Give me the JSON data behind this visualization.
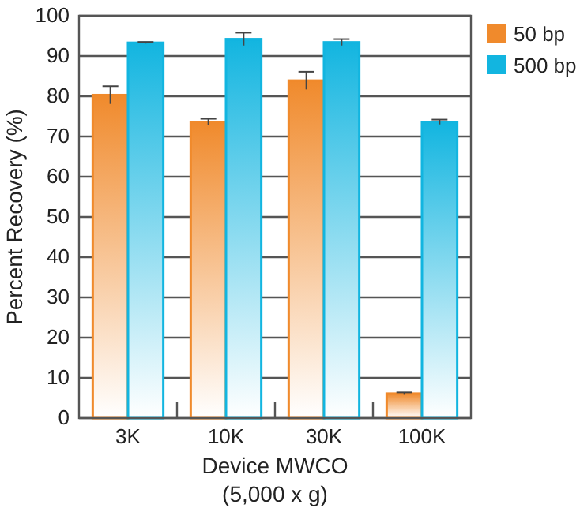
{
  "chart_data": {
    "type": "bar",
    "categories": [
      "3K",
      "10K",
      "30K",
      "100K"
    ],
    "series": [
      {
        "name": "50 bp",
        "color": "#f08a2c",
        "values": [
          80.3,
          73.6,
          83.9,
          6.1
        ],
        "errors": [
          2.2,
          0.8,
          2.2,
          0.3
        ]
      },
      {
        "name": "500 bp",
        "color": "#12b5e0",
        "values": [
          93.3,
          94.2,
          93.4,
          73.6
        ],
        "errors": [
          0.2,
          1.6,
          0.8,
          0.6
        ]
      }
    ],
    "xlabel": "Device MWCO\n(5,000 x g)",
    "ylabel": "Percent Recovery (%)",
    "ylim": [
      0,
      100
    ],
    "yticks": [
      0,
      10,
      20,
      30,
      40,
      50,
      60,
      70,
      80,
      90,
      100
    ],
    "grid": "y",
    "legend": "top right"
  }
}
